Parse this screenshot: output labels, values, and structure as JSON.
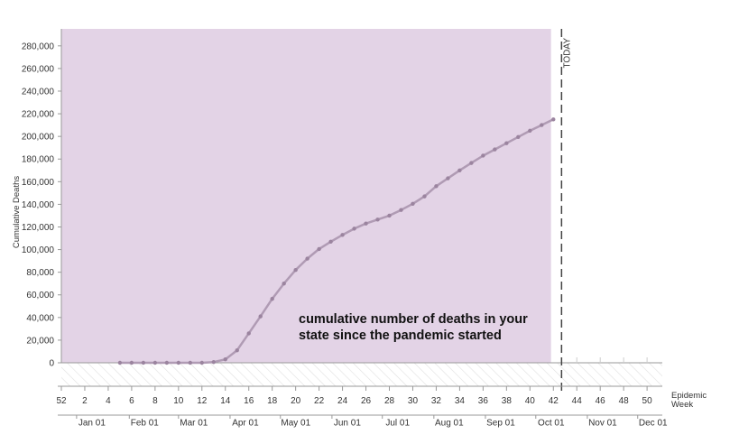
{
  "chart_data": {
    "type": "line",
    "ylabel": "Cumulative Deaths",
    "xlabel": "Epidemic Week",
    "today_label": "TODAY",
    "annotation": [
      "cumulative number of deaths in your",
      "state since the pandemic started"
    ],
    "ylim": [
      0,
      295000
    ],
    "yticks": [
      0,
      20000,
      40000,
      60000,
      80000,
      100000,
      120000,
      140000,
      160000,
      180000,
      200000,
      220000,
      240000,
      260000,
      280000
    ],
    "ytick_labels": [
      "0",
      "20,000",
      "40,000",
      "60,000",
      "80,000",
      "100,000",
      "120,000",
      "140,000",
      "160,000",
      "180,000",
      "200,000",
      "220,000",
      "240,000",
      "260,000",
      "280,000"
    ],
    "week_ticks": [
      {
        "pos": 0,
        "label": "52"
      },
      {
        "pos": 2,
        "label": "2"
      },
      {
        "pos": 4,
        "label": "4"
      },
      {
        "pos": 6,
        "label": "6"
      },
      {
        "pos": 8,
        "label": "8"
      },
      {
        "pos": 10,
        "label": "10"
      },
      {
        "pos": 12,
        "label": "12"
      },
      {
        "pos": 14,
        "label": "14"
      },
      {
        "pos": 16,
        "label": "16"
      },
      {
        "pos": 18,
        "label": "18"
      },
      {
        "pos": 20,
        "label": "20"
      },
      {
        "pos": 22,
        "label": "22"
      },
      {
        "pos": 24,
        "label": "24"
      },
      {
        "pos": 26,
        "label": "26"
      },
      {
        "pos": 28,
        "label": "28"
      },
      {
        "pos": 30,
        "label": "30"
      },
      {
        "pos": 32,
        "label": "32"
      },
      {
        "pos": 34,
        "label": "34"
      },
      {
        "pos": 36,
        "label": "36"
      },
      {
        "pos": 38,
        "label": "38"
      },
      {
        "pos": 40,
        "label": "40"
      },
      {
        "pos": 42,
        "label": "42"
      },
      {
        "pos": 44,
        "label": "44"
      },
      {
        "pos": 46,
        "label": "46"
      },
      {
        "pos": 48,
        "label": "48"
      },
      {
        "pos": 50,
        "label": "50"
      }
    ],
    "month_ticks": [
      {
        "pos": 1.3,
        "label": "Jan 01"
      },
      {
        "pos": 5.8,
        "label": "Feb 01"
      },
      {
        "pos": 10.0,
        "label": "Mar 01"
      },
      {
        "pos": 14.4,
        "label": "Apr 01"
      },
      {
        "pos": 18.7,
        "label": "May 01"
      },
      {
        "pos": 23.1,
        "label": "Jun 01"
      },
      {
        "pos": 27.4,
        "label": "Jul 01"
      },
      {
        "pos": 31.8,
        "label": "Aug 01"
      },
      {
        "pos": 36.2,
        "label": "Sep 01"
      },
      {
        "pos": 40.5,
        "label": "Oct 01"
      },
      {
        "pos": 44.9,
        "label": "Nov 01"
      },
      {
        "pos": 49.2,
        "label": "Dec 01"
      }
    ],
    "xlim": [
      0,
      51.3
    ],
    "shaded_range": [
      0,
      41.8
    ],
    "today_week": 42.7,
    "series": [
      {
        "x": [
          5,
          6,
          7,
          8,
          9,
          10,
          11,
          12,
          13,
          14,
          15,
          16,
          17,
          18,
          19,
          20,
          21,
          22,
          23,
          24,
          25,
          26,
          27,
          28,
          29,
          30,
          31,
          32,
          33,
          34,
          35,
          36,
          37,
          38,
          39,
          40,
          41,
          42
        ],
        "y": [
          0,
          0,
          0,
          0,
          0,
          0,
          0,
          0,
          600,
          3000,
          11000,
          26000,
          41000,
          56500,
          70000,
          82000,
          92000,
          100500,
          107000,
          113000,
          118500,
          123000,
          126500,
          130000,
          135000,
          140500,
          147000,
          156000,
          163000,
          170000,
          176500,
          183000,
          188500,
          194000,
          199500,
          205000,
          210000,
          215000
        ]
      }
    ],
    "colors": {
      "shade": "#e3d3e6",
      "line": "#b09bb4",
      "marker": "#9b849f",
      "hatch_line": "#e0e0e0",
      "axis": "#999999",
      "today_line": "#444444"
    }
  }
}
